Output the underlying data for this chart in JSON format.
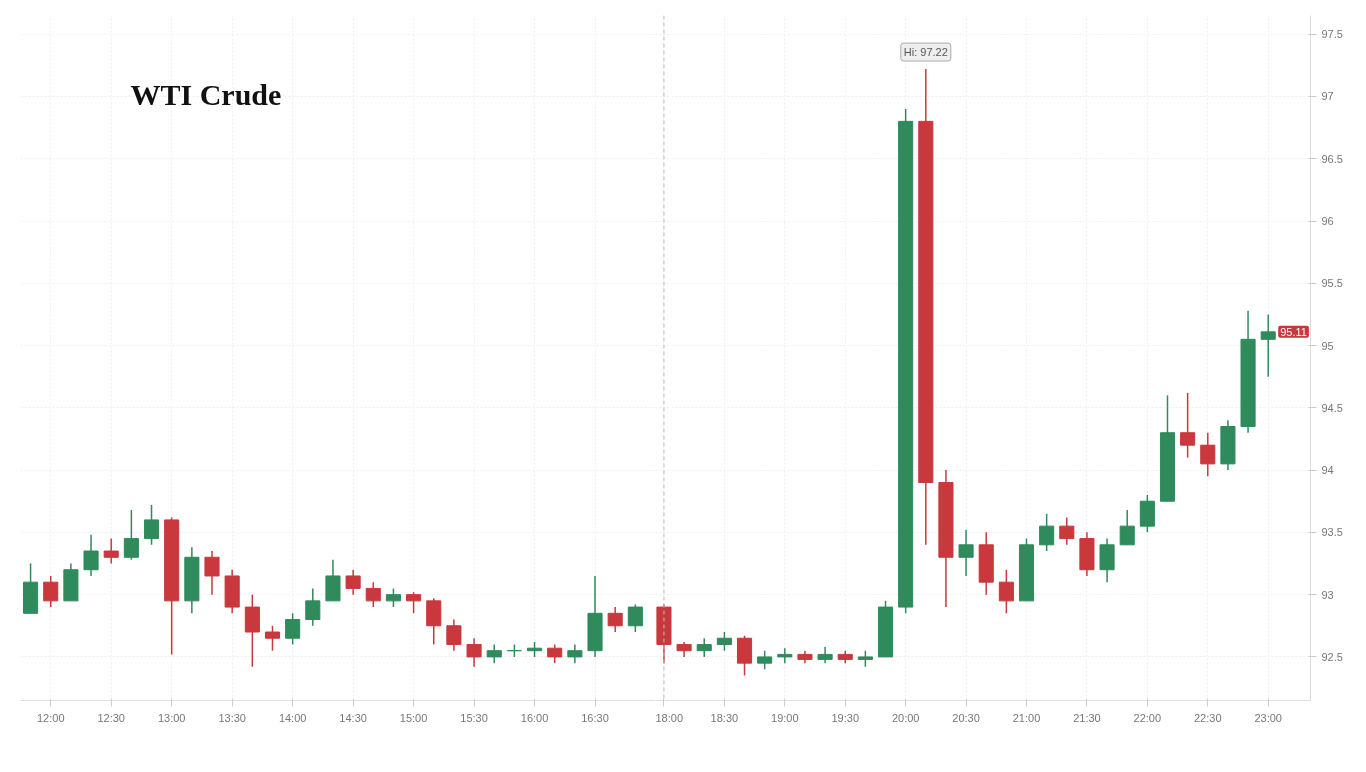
{
  "chart_data": [
    {
      "type": "candlestick",
      "title": "WTI Crude",
      "tick_labels": "x",
      "x": [
        11.8333,
        12.0,
        12.1667,
        12.3333,
        12.5,
        12.6667,
        12.8333,
        13.0,
        13.1667,
        13.3333,
        13.5,
        13.6667,
        13.8333,
        14.0,
        14.1667,
        14.3333,
        14.5,
        14.6667,
        14.8333,
        15.0,
        15.1667,
        15.3333,
        15.5,
        15.6667,
        15.8333,
        16.0,
        16.1667,
        16.3333,
        16.5,
        16.6667,
        16.8333
      ],
      "ohlc": [
        [
          92.85,
          93.25,
          92.85,
          93.1
        ],
        [
          93.1,
          93.15,
          92.9,
          92.95
        ],
        [
          92.95,
          93.25,
          92.95,
          93.2
        ],
        [
          93.2,
          93.48,
          93.15,
          93.35
        ],
        [
          93.35,
          93.45,
          93.25,
          93.3
        ],
        [
          93.3,
          93.68,
          93.28,
          93.45
        ],
        [
          93.45,
          93.72,
          93.4,
          93.6
        ],
        [
          93.6,
          93.62,
          92.52,
          92.95
        ],
        [
          92.95,
          93.38,
          92.85,
          93.3
        ],
        [
          93.3,
          93.35,
          93.0,
          93.15
        ],
        [
          93.15,
          93.2,
          92.85,
          92.9
        ],
        [
          92.9,
          93.0,
          92.42,
          92.7
        ],
        [
          92.7,
          92.75,
          92.55,
          92.65
        ],
        [
          92.65,
          92.85,
          92.6,
          92.8
        ],
        [
          92.8,
          93.05,
          92.75,
          92.95
        ],
        [
          92.95,
          93.28,
          92.95,
          93.15
        ],
        [
          93.15,
          93.2,
          93.0,
          93.05
        ],
        [
          93.05,
          93.1,
          92.9,
          92.95
        ],
        [
          92.95,
          93.05,
          92.9,
          93.0
        ],
        [
          93.0,
          93.02,
          92.85,
          92.95
        ],
        [
          92.95,
          92.97,
          92.6,
          92.75
        ],
        [
          92.75,
          92.8,
          92.55,
          92.6
        ],
        [
          92.6,
          92.65,
          92.42,
          92.5
        ],
        [
          92.5,
          92.6,
          92.45,
          92.55
        ],
        [
          92.55,
          92.6,
          92.5,
          92.55
        ],
        [
          92.55,
          92.62,
          92.5,
          92.57
        ],
        [
          92.57,
          92.6,
          92.45,
          92.5
        ],
        [
          92.5,
          92.6,
          92.45,
          92.55
        ],
        [
          92.55,
          93.15,
          92.5,
          92.85
        ],
        [
          92.85,
          92.9,
          92.7,
          92.75
        ],
        [
          92.75,
          92.92,
          92.7,
          92.9
        ]
      ],
      "colors": [
        "#2f8a5c",
        "#c8383d",
        "#2f8a5c",
        "#2f8a5c",
        "#c8383d",
        "#2f8a5c",
        "#2f8a5c",
        "#c8383d",
        "#2f8a5c",
        "#c8383d",
        "#c8383d",
        "#c8383d",
        "#c8383d",
        "#2f8a5c",
        "#2f8a5c",
        "#2f8a5c",
        "#c8383d",
        "#c8383d",
        "#2f8a5c",
        "#c8383d",
        "#c8383d",
        "#c8383d",
        "#c8383d",
        "#2f8a5c",
        "#2f8a5c",
        "#2f8a5c",
        "#c8383d",
        "#2f8a5c",
        "#2f8a5c",
        "#c8383d",
        "#2f8a5c"
      ],
      "xlim": [
        11.75,
        17.0
      ],
      "xticks": [
        {
          "value": 12,
          "label": "12:00"
        },
        {
          "value": 12.5,
          "label": "12:30"
        },
        {
          "value": 13,
          "label": "13:00"
        },
        {
          "value": 13.5,
          "label": "13:30"
        },
        {
          "value": 14,
          "label": "14:00"
        },
        {
          "value": 14.5,
          "label": "14:30"
        },
        {
          "value": 15,
          "label": "15:00"
        },
        {
          "value": 15.5,
          "label": "15:30"
        },
        {
          "value": 16,
          "label": "16:00"
        },
        {
          "value": 16.5,
          "label": "16:30"
        }
      ],
      "ylim": [
        92.15,
        97.65
      ],
      "yticks": [
        92.5,
        93,
        93.5,
        94,
        94.5,
        95,
        95.5,
        96,
        96.5,
        97,
        97.5
      ],
      "grid": true
    },
    {
      "type": "candlestick",
      "x": [
        18.0,
        18.1667,
        18.3333,
        18.5,
        18.6667,
        18.8333,
        19.0,
        19.1667,
        19.3333,
        19.5,
        19.6667,
        19.8333,
        20.0,
        20.1667,
        20.3333,
        20.5,
        20.6667,
        20.8333,
        21.0,
        21.1667,
        21.3333,
        21.5,
        21.6667,
        21.8333,
        22.0,
        22.1667,
        22.3333,
        22.5,
        22.6667,
        22.8333,
        23.0
      ],
      "ohlc": [
        [
          92.9,
          92.92,
          92.45,
          92.6
        ],
        [
          92.6,
          92.62,
          92.5,
          92.55
        ],
        [
          92.55,
          92.65,
          92.5,
          92.6
        ],
        [
          92.6,
          92.7,
          92.55,
          92.65
        ],
        [
          92.65,
          92.67,
          92.35,
          92.45
        ],
        [
          92.45,
          92.55,
          92.4,
          92.5
        ],
        [
          92.5,
          92.57,
          92.45,
          92.52
        ],
        [
          92.52,
          92.55,
          92.45,
          92.48
        ],
        [
          92.48,
          92.58,
          92.45,
          92.52
        ],
        [
          92.52,
          92.55,
          92.45,
          92.48
        ],
        [
          92.48,
          92.55,
          92.42,
          92.5
        ],
        [
          92.5,
          92.95,
          92.5,
          92.9
        ],
        [
          92.9,
          96.9,
          92.85,
          96.8
        ],
        [
          96.8,
          97.22,
          93.4,
          93.9
        ],
        [
          93.9,
          94.0,
          92.9,
          93.3
        ],
        [
          93.3,
          93.52,
          93.15,
          93.4
        ],
        [
          93.4,
          93.5,
          93.0,
          93.1
        ],
        [
          93.1,
          93.2,
          92.85,
          92.95
        ],
        [
          92.95,
          93.45,
          92.95,
          93.4
        ],
        [
          93.4,
          93.65,
          93.35,
          93.55
        ],
        [
          93.55,
          93.62,
          93.4,
          93.45
        ],
        [
          93.45,
          93.5,
          93.15,
          93.2
        ],
        [
          93.2,
          93.45,
          93.1,
          93.4
        ],
        [
          93.4,
          93.68,
          93.4,
          93.55
        ],
        [
          93.55,
          93.8,
          93.5,
          93.75
        ],
        [
          93.75,
          94.6,
          93.75,
          94.3
        ],
        [
          94.3,
          94.62,
          94.1,
          94.2
        ],
        [
          94.2,
          94.3,
          93.95,
          94.05
        ],
        [
          94.05,
          94.4,
          94.0,
          94.35
        ],
        [
          94.35,
          95.28,
          94.3,
          95.05
        ],
        [
          95.05,
          95.25,
          94.75,
          95.11
        ]
      ],
      "colors": [
        "#c8383d",
        "#c8383d",
        "#2f8a5c",
        "#2f8a5c",
        "#c8383d",
        "#2f8a5c",
        "#2f8a5c",
        "#c8383d",
        "#2f8a5c",
        "#c8383d",
        "#2f8a5c",
        "#2f8a5c",
        "#2f8a5c",
        "#c8383d",
        "#c8383d",
        "#2f8a5c",
        "#c8383d",
        "#c8383d",
        "#2f8a5c",
        "#2f8a5c",
        "#c8383d",
        "#c8383d",
        "#2f8a5c",
        "#2f8a5c",
        "#2f8a5c",
        "#2f8a5c",
        "#c8383d",
        "#c8383d",
        "#2f8a5c",
        "#2f8a5c",
        "#2f8a5c"
      ],
      "xlim": [
        17.93,
        23.35
      ],
      "xticks": [
        {
          "value": 18,
          "label": "18:00"
        },
        {
          "value": 18.5,
          "label": "18:30"
        },
        {
          "value": 19,
          "label": "19:00"
        },
        {
          "value": 19.5,
          "label": "19:30"
        },
        {
          "value": 20,
          "label": "20:00"
        },
        {
          "value": 20.5,
          "label": "20:30"
        },
        {
          "value": 21,
          "label": "21:00"
        },
        {
          "value": 21.5,
          "label": "21:30"
        },
        {
          "value": 22,
          "label": "22:00"
        },
        {
          "value": 22.5,
          "label": "22:30"
        },
        {
          "value": 23,
          "label": "23:00"
        }
      ],
      "ylim": [
        92.15,
        97.65
      ],
      "yticks": [
        92.5,
        93,
        93.5,
        94,
        94.5,
        95,
        95.5,
        96,
        96.5,
        97,
        97.5
      ],
      "grid": true,
      "ref_lines": [
        {
          "axis": "x",
          "value": 18,
          "color": "#bbbbbb",
          "line_style": "dashed"
        }
      ],
      "annotations": [
        {
          "text": "Hi: 97.22",
          "x": 20.1667,
          "y": 97.22
        },
        {
          "text": "95.11",
          "x": 23.0,
          "y": 95.11
        }
      ]
    }
  ]
}
